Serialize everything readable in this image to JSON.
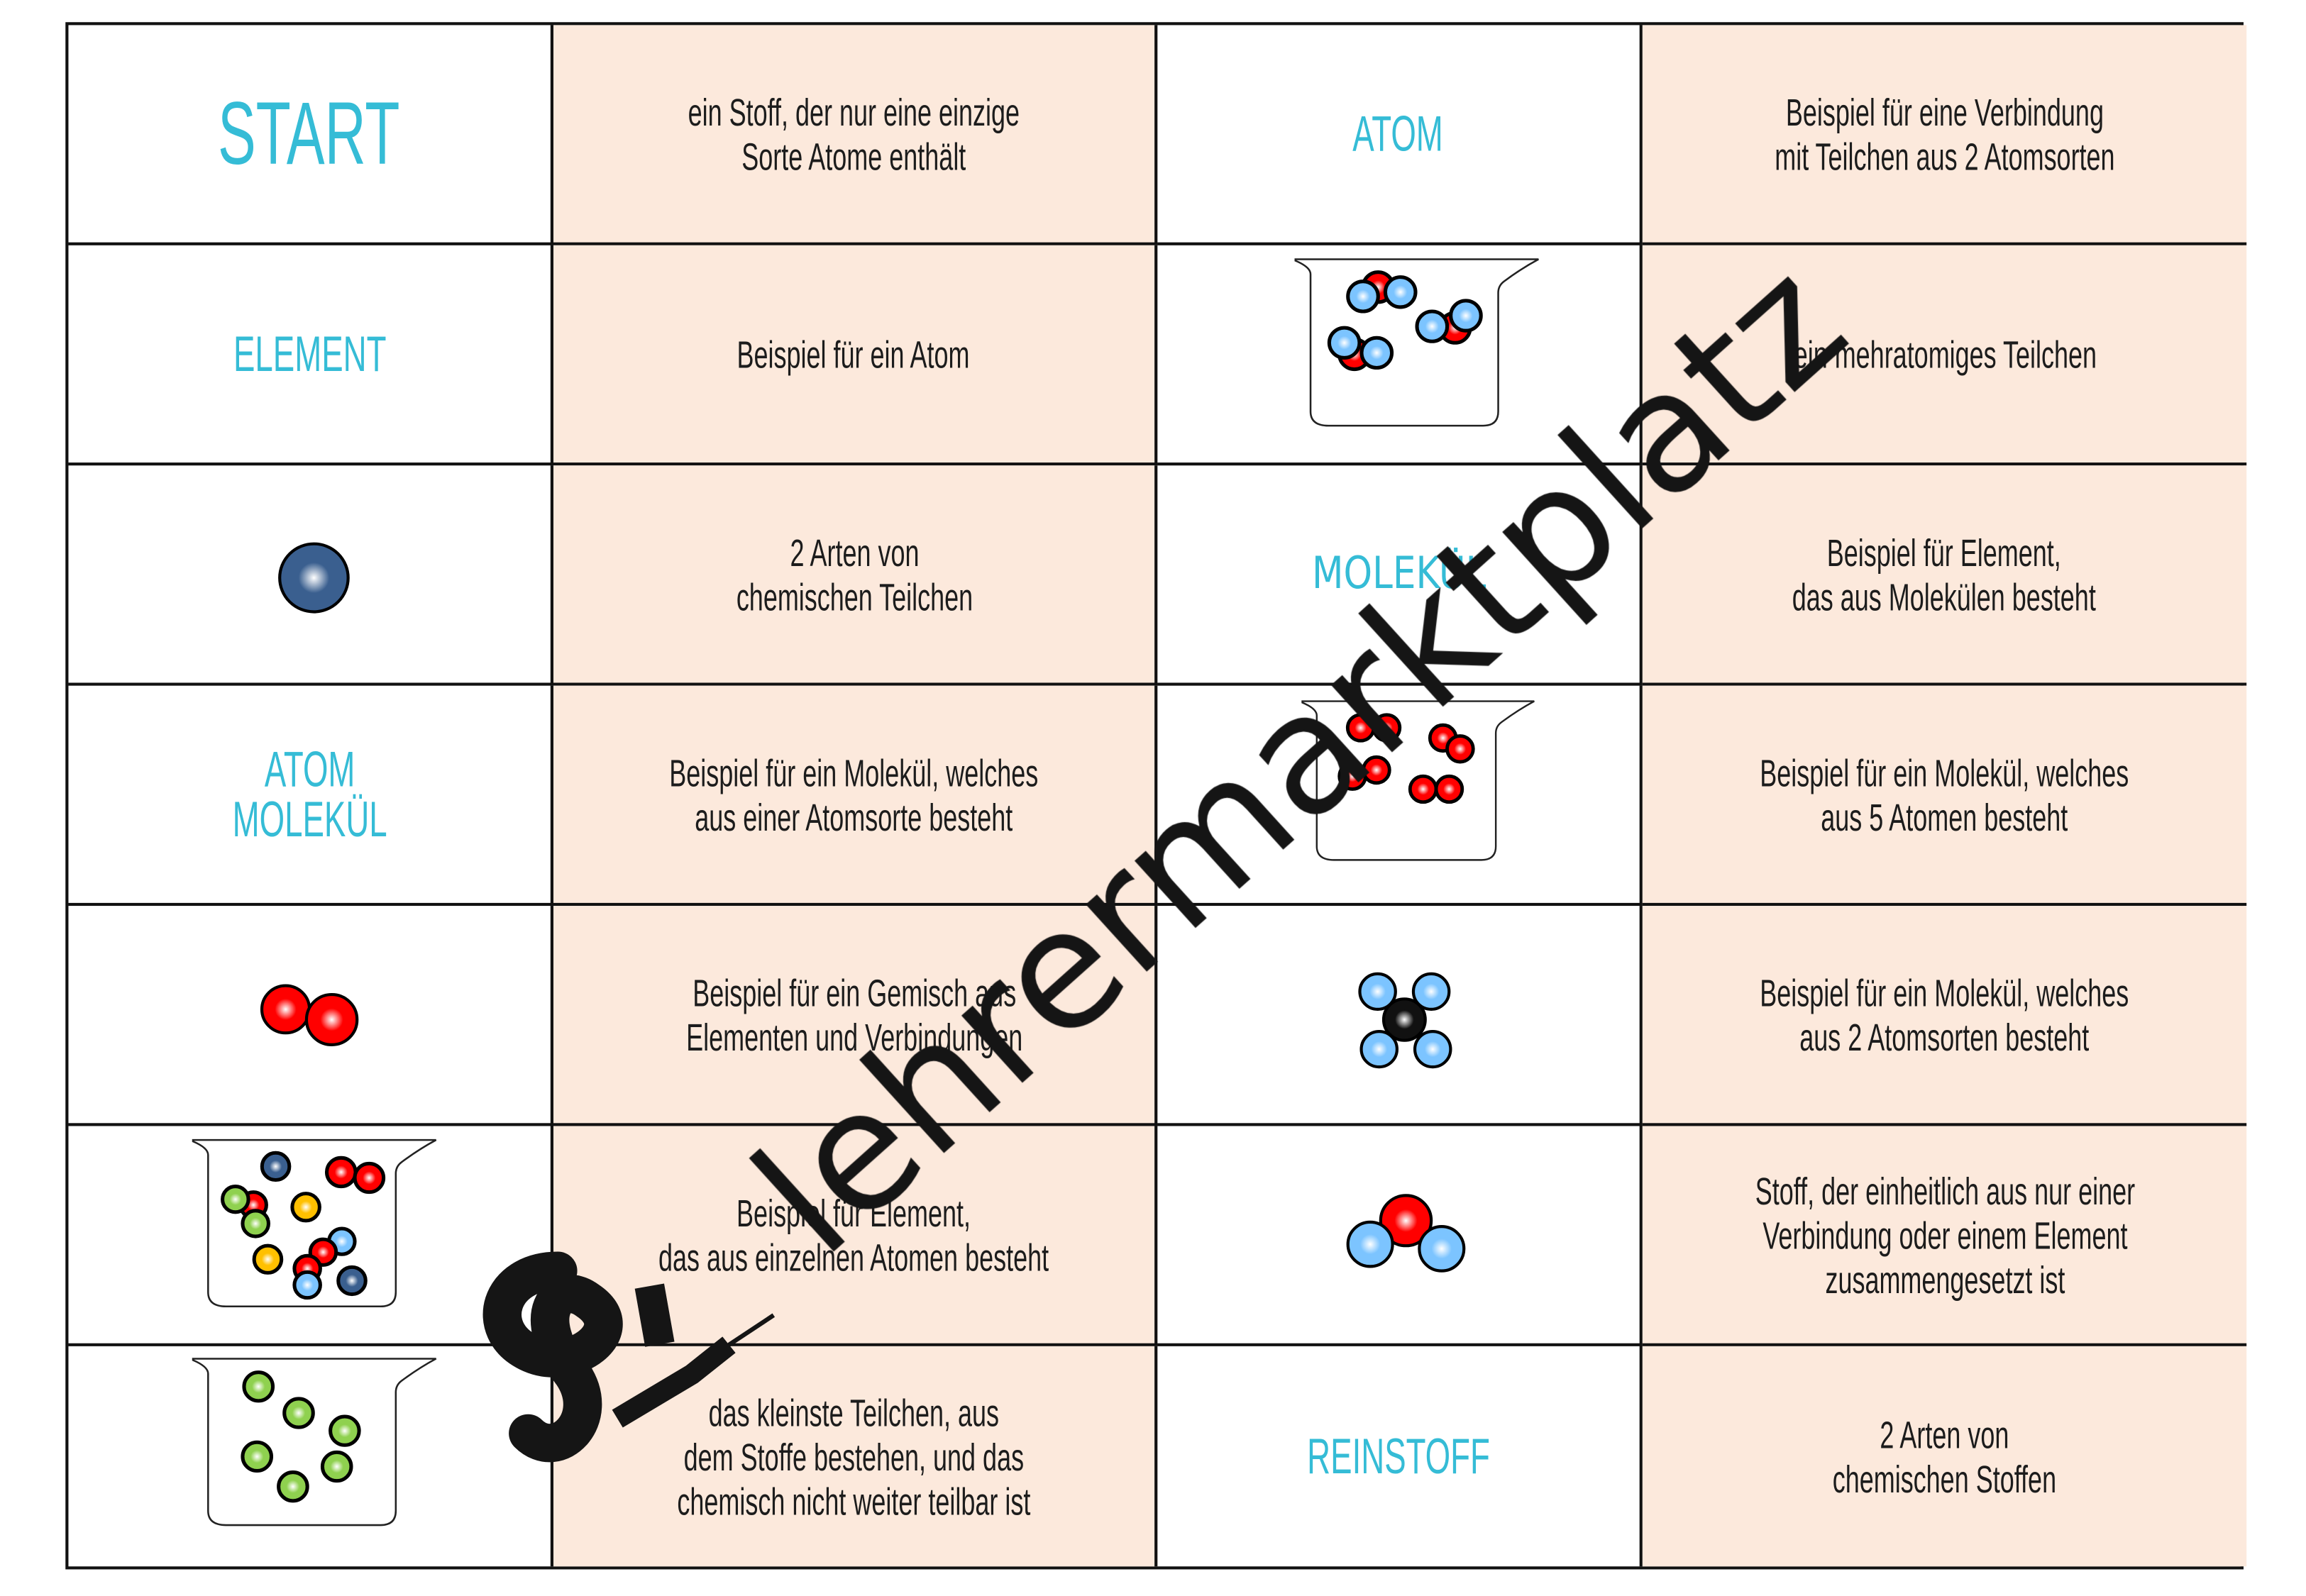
{
  "colors": {
    "accent": "#35bcd6",
    "peach": "#fce9dc",
    "red": "#ff0000",
    "lightblue": "#7cc4ff",
    "navy": "#3a5f8f",
    "green": "#8fd14f",
    "yellow": "#ffc000",
    "black": "#111111"
  },
  "rows": [
    [
      {
        "label": "START"
      },
      {
        "text": "ein Stoff, der nur eine einzige\nSorte Atome enthält"
      },
      {
        "label": "ATOM"
      },
      {
        "text": "Beispiel für eine Verbindung\nmit Teilchen aus 2 Atomsorten"
      }
    ],
    [
      {
        "label": "ELEMENT"
      },
      {
        "text": "Beispiel für ein Atom"
      },
      {
        "illustration": "beaker-water-molecules"
      },
      {
        "text": "ein mehratomiges Teilchen"
      }
    ],
    [
      {
        "illustration": "single-atom"
      },
      {
        "text": "2 Arten von\nchemischen Teilchen"
      },
      {
        "label": "MOLEKÜL"
      },
      {
        "text": "Beispiel für Element,\ndas aus Molekülen besteht"
      }
    ],
    [
      {
        "label": "ATOM\nMOLEKÜL"
      },
      {
        "text": "Beispiel für ein Molekül, welches\naus einer Atomsorte besteht"
      },
      {
        "illustration": "beaker-oxygen-molecules"
      },
      {
        "text": "Beispiel für ein Molekül, welches\naus 5 Atomen besteht"
      }
    ],
    [
      {
        "illustration": "oxygen-molecule"
      },
      {
        "text": "Beispiel für ein Gemisch aus\nElementen und Verbindungen"
      },
      {
        "illustration": "methane-molecule"
      },
      {
        "text": "Beispiel für ein Molekül, welches\naus 2 Atomsorten besteht"
      }
    ],
    [
      {
        "illustration": "beaker-mixture"
      },
      {
        "text": "Beispiel für Element,\ndas aus einzelnen Atomen besteht"
      },
      {
        "illustration": "water-molecule"
      },
      {
        "text": "Stoff, der einheitlich aus nur einer\nVerbindung oder einem Element\nzusammengesetzt ist"
      }
    ],
    [
      {
        "illustration": "beaker-single-atoms"
      },
      {
        "text": "das kleinste Teilchen, aus\ndem Stoffe bestehen, und das\nchemisch nicht weiter teilbar ist"
      },
      {
        "label": "REINSTOFF"
      },
      {
        "text": "2 Arten von\nchemischen Stoffen"
      }
    ]
  ],
  "watermark": {
    "text": "lehrermarktplatz",
    "logo": "lehrermarktplatz-logo"
  }
}
